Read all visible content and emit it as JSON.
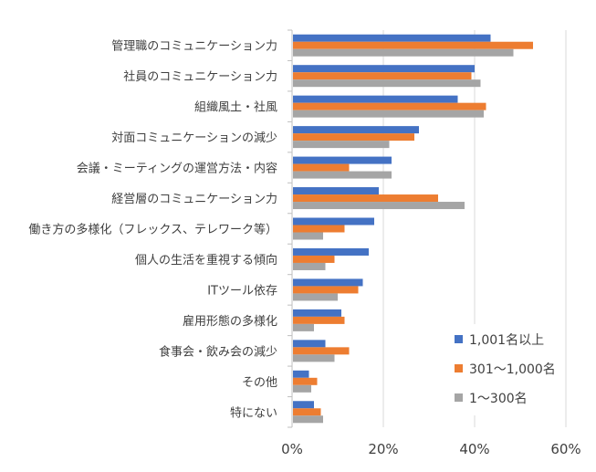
{
  "chart_data": {
    "type": "bar",
    "orientation": "horizontal",
    "categories": [
      "管理職のコミュニケーション力",
      "社員のコミュニケーション力",
      "組織風土・社風",
      "対面コミュニケーションの減少",
      "会議・ミーティングの運営方法・内容",
      "経営層のコミュニケーション力",
      "働き方の多様化（フレックス、テレワーク等）",
      "個人の生活を重視する傾向",
      "ITツール依存",
      "雇用形態の多様化",
      "食事会・飲み会の減少",
      "その他",
      "特にない"
    ],
    "series": [
      {
        "name": "1,001名以上",
        "color": "#4472C4",
        "values": [
          43.5,
          40.0,
          36.3,
          27.8,
          21.8,
          19.0,
          18.0,
          16.8,
          15.5,
          10.8,
          7.3,
          3.7,
          4.8
        ]
      },
      {
        "name": "301〜1,000名",
        "color": "#ED7D31",
        "values": [
          52.8,
          39.3,
          42.5,
          26.8,
          12.5,
          32.0,
          11.5,
          9.3,
          14.5,
          11.5,
          12.5,
          5.5,
          6.3
        ]
      },
      {
        "name": "1〜300名",
        "color": "#A5A5A5",
        "values": [
          48.5,
          41.3,
          42.0,
          21.3,
          21.8,
          37.8,
          6.8,
          7.3,
          10.0,
          4.8,
          9.3,
          4.2,
          6.8
        ]
      }
    ],
    "x_ticks": [
      "0%",
      "20%",
      "40%",
      "60%"
    ],
    "xlim": [
      0,
      60
    ],
    "grid": true,
    "legend_position": "bottom-right-inside",
    "title": "",
    "xlabel": "",
    "ylabel": ""
  }
}
